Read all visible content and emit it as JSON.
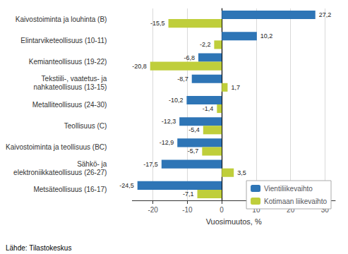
{
  "chart_data": {
    "type": "bar",
    "orientation": "horizontal",
    "categories": [
      "Kaivostoiminta ja louhinta (B)",
      "Elintarviketeollisuus (10-11)",
      "Kemianteollisuus (19-22)",
      "Tekstiili-, vaatetus- ja\nnahkateollisuus (13-15)",
      "Metalliteollisuus (24-30)",
      "Teollisuus (C)",
      "Kaivostoiminta ja teollisuus (BC)",
      "Sähkö- ja\nelektroniikkateollisuus (26-27)",
      "Metsäteollisuus (16-17)"
    ],
    "series": [
      {
        "name": "Vientiliikevaihto",
        "color": "#2E75B6",
        "values": [
          27.2,
          10.2,
          -6.8,
          -8.7,
          -10.2,
          -12.3,
          -12.9,
          -17.5,
          -24.5
        ],
        "value_labels": [
          "27,2",
          "10,2",
          "-6,8",
          "-8,7",
          "-10,2",
          "-12,3",
          "-12,9",
          "-17,5",
          "-24,5"
        ]
      },
      {
        "name": "Kotimaan liikevaihto",
        "color": "#BFCE3B",
        "values": [
          -15.5,
          -2.2,
          -20.8,
          1.7,
          -1.4,
          -5.4,
          -5.7,
          3.5,
          -7.1
        ],
        "value_labels": [
          "-15,5",
          "-2,2",
          "-20,8",
          "1,7",
          "-1,4",
          "-5,4",
          "-5,7",
          "3,5",
          "-7,1"
        ]
      }
    ],
    "xlabel": "Vuosimuutos, %",
    "xlim": [
      -26,
      33
    ],
    "xticks": [
      -20,
      -10,
      0,
      10,
      20,
      30
    ],
    "grid": true,
    "legend": "lower right",
    "data_labels": true,
    "annotations": [
      "Lähde: Tilastokeskus"
    ]
  }
}
